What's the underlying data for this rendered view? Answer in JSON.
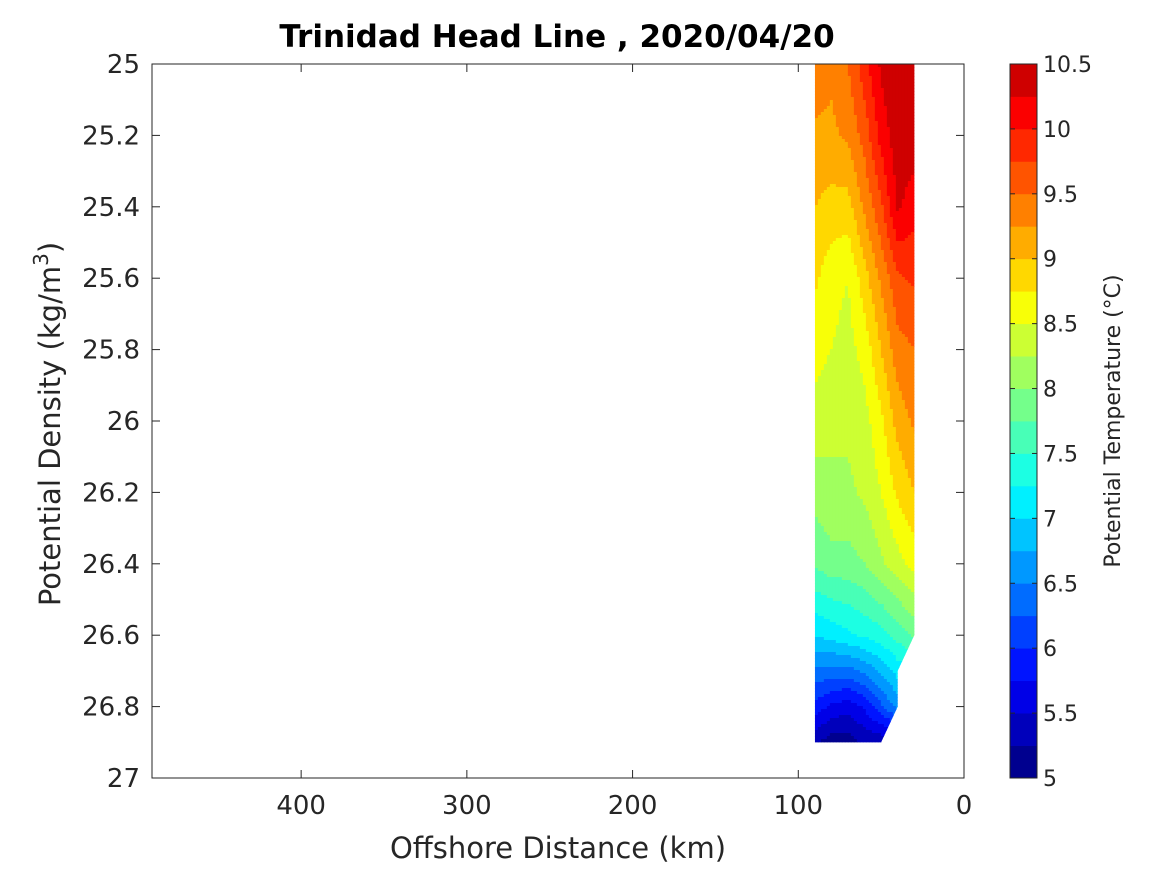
{
  "chart_data": {
    "type": "heatmap",
    "title": "Trinidad Head Line , 2020/04/20",
    "xlabel": "Offshore Distance (km)",
    "ylabel_main": "Potential Density (kg/m",
    "ylabel_sup": "3",
    "ylabel_end": ")",
    "colorbar_label": "Potential Temperature (°C)",
    "x_reversed": true,
    "xlim": [
      490,
      0
    ],
    "ylim": [
      25,
      27
    ],
    "y_reversed": true,
    "x_ticks": [
      400,
      300,
      200,
      100,
      0
    ],
    "x_tick_labels": [
      "400",
      "300",
      "200",
      "100",
      "0"
    ],
    "y_ticks": [
      25,
      25.2,
      25.4,
      25.6,
      25.8,
      26,
      26.2,
      26.4,
      26.6,
      26.8,
      27
    ],
    "y_tick_labels": [
      "25",
      "25.2",
      "25.4",
      "25.6",
      "25.8",
      "26",
      "26.2",
      "26.4",
      "26.6",
      "26.8",
      "27"
    ],
    "colorbar_range": [
      5,
      10.5
    ],
    "colorbar_step": 0.25,
    "colorbar_ticks": [
      5,
      5.5,
      6,
      6.5,
      7,
      7.5,
      8,
      8.5,
      9,
      9.5,
      10,
      10.5
    ],
    "colorbar_tick_labels": [
      "5",
      "5.5",
      "6",
      "6.5",
      "7",
      "7.5",
      "8",
      "8.5",
      "9",
      "9.5",
      "10",
      "10.5"
    ],
    "colormap": [
      "#00008f",
      "#0000bb",
      "#0000e7",
      "#0014ff",
      "#0040ff",
      "#006cff",
      "#0098ff",
      "#00c4ff",
      "#00f0ff",
      "#1cffe3",
      "#48ffb7",
      "#74ff8b",
      "#a0ff5f",
      "#ccff33",
      "#f8ff07",
      "#ffd800",
      "#ffac00",
      "#ff8000",
      "#ff5400",
      "#ff2800",
      "#fb0000",
      "#cf0000"
    ],
    "x": [
      90,
      80,
      70,
      60,
      50,
      40,
      30
    ],
    "y": [
      25.0,
      25.2,
      25.4,
      25.6,
      25.8,
      26.0,
      26.2,
      26.4,
      26.6,
      26.8,
      26.9
    ],
    "temperature": [
      [
        9.4,
        9.3,
        9.5,
        9.9,
        10.3,
        10.5,
        10.5
      ],
      [
        9.2,
        9.2,
        9.3,
        9.6,
        10.1,
        10.4,
        10.4
      ],
      [
        9.0,
        8.9,
        8.9,
        9.3,
        9.7,
        10.3,
        10.1
      ],
      [
        8.8,
        8.6,
        8.5,
        8.9,
        9.3,
        9.7,
        9.8
      ],
      [
        8.6,
        8.5,
        8.4,
        8.6,
        9.0,
        9.4,
        9.5
      ],
      [
        8.4,
        8.3,
        8.3,
        8.4,
        8.7,
        9.1,
        9.3
      ],
      [
        8.1,
        8.2,
        8.2,
        8.3,
        8.5,
        8.8,
        9.0
      ],
      [
        7.8,
        7.9,
        7.9,
        8.0,
        8.2,
        8.4,
        8.6
      ],
      [
        7.0,
        7.1,
        7.2,
        7.3,
        7.4,
        7.6,
        7.8
      ],
      [
        5.9,
        5.7,
        5.6,
        5.8,
        6.2,
        6.6,
        null
      ],
      [
        5.3,
        5.1,
        5.1,
        5.3,
        null,
        null,
        null
      ]
    ]
  }
}
